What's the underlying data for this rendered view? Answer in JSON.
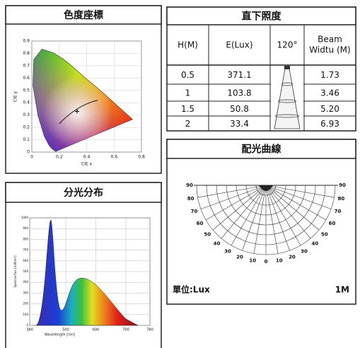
{
  "chromaticity": {
    "title": "色度座標",
    "x_label": "CIE x",
    "y_label": "CIE y",
    "xlim": [
      0,
      0.8
    ],
    "ylim": [
      0,
      0.9
    ],
    "xticks": [
      0,
      0.2,
      0.4,
      0.6,
      0.8
    ],
    "yticks": [
      0,
      0.1,
      0.2,
      0.3,
      0.4,
      0.5,
      0.6,
      0.7,
      0.8,
      0.9
    ]
  },
  "illuminance": {
    "title": "直下照度",
    "columns": [
      "H(M)",
      "E(Lux)",
      "120°",
      [
        "Beam",
        "Widtu (M)"
      ]
    ],
    "rows": [
      [
        "0.5",
        "371.1",
        "1.73"
      ],
      [
        "1",
        "103.8",
        "3.46"
      ],
      [
        "1.5",
        "50.8",
        "5.20"
      ],
      [
        "2",
        "33.4",
        "6.93"
      ]
    ]
  },
  "distribution": {
    "title": "配光曲線",
    "angle_labels": [
      90,
      80,
      70,
      60,
      50,
      40,
      30,
      20,
      10,
      0,
      10,
      20,
      30,
      40,
      50,
      60,
      70,
      80,
      90
    ],
    "unit_label": "單位:Lux",
    "scale_label": "1M"
  },
  "spectrum": {
    "title": "分光分布",
    "x_label": "Wavelength [nm]",
    "y_label": "Spectral flux [mW/nm]",
    "xlim": [
      380,
      780
    ],
    "ylim": [
      0,
      1000
    ],
    "xticks": [
      380,
      500,
      600,
      700,
      780
    ],
    "yticks": [
      0,
      100,
      200,
      300,
      400,
      500,
      600,
      700,
      800,
      900,
      1000
    ]
  }
}
